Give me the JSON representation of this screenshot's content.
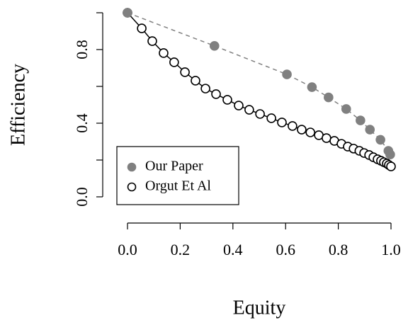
{
  "chart_data": {
    "type": "scatter",
    "xlabel": "Equity",
    "ylabel": "Efficiency",
    "xlim": [
      0,
      1
    ],
    "ylim": [
      0,
      1
    ],
    "xticks": [
      {
        "value": 0,
        "label": "0.0"
      },
      {
        "value": 0.2,
        "label": "0.2"
      },
      {
        "value": 0.4,
        "label": "0.4"
      },
      {
        "value": 0.6,
        "label": "0.6"
      },
      {
        "value": 0.8,
        "label": "0.8"
      },
      {
        "value": 1,
        "label": "1.0"
      }
    ],
    "yticks": [
      {
        "value": 0,
        "label": "0.0"
      },
      {
        "value": 0.4,
        "label": "0.4"
      },
      {
        "value": 0.8,
        "label": "0.8"
      }
    ],
    "yminor_ticks": [
      0.2,
      0.6,
      1
    ],
    "legend": "bottom-left",
    "series": [
      {
        "name": "Our Paper",
        "color": "#808080",
        "marker": "filled",
        "line": "dashed",
        "x": [
          0,
          0.33,
          0.605,
          0.7,
          0.763,
          0.83,
          0.884,
          0.92,
          0.96,
          0.99,
          0.997
        ],
        "values": [
          1,
          0.82,
          0.665,
          0.596,
          0.54,
          0.477,
          0.415,
          0.365,
          0.31,
          0.25,
          0.23
        ]
      },
      {
        "name": "Orgut Et Al",
        "color": "#000000",
        "marker": "open",
        "line": "solid",
        "x": [
          0,
          0.054,
          0.094,
          0.137,
          0.177,
          0.218,
          0.258,
          0.296,
          0.336,
          0.379,
          0.422,
          0.462,
          0.503,
          0.546,
          0.586,
          0.626,
          0.661,
          0.694,
          0.726,
          0.755,
          0.785,
          0.812,
          0.836,
          0.858,
          0.88,
          0.898,
          0.917,
          0.933,
          0.949,
          0.962,
          0.973,
          0.984,
          0.992,
          1
        ],
        "values": [
          1,
          0.915,
          0.846,
          0.781,
          0.731,
          0.677,
          0.631,
          0.588,
          0.558,
          0.527,
          0.496,
          0.473,
          0.45,
          0.427,
          0.404,
          0.385,
          0.365,
          0.35,
          0.335,
          0.319,
          0.304,
          0.288,
          0.273,
          0.262,
          0.25,
          0.238,
          0.227,
          0.215,
          0.204,
          0.196,
          0.188,
          0.181,
          0.173,
          0.165
        ]
      }
    ]
  }
}
